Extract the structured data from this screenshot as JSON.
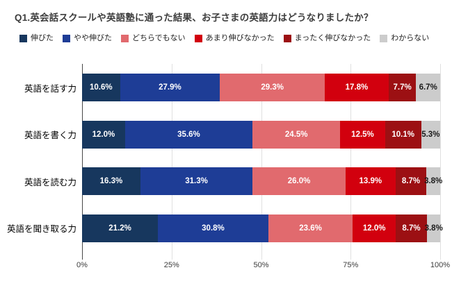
{
  "chart_data": {
    "type": "bar",
    "orientation": "horizontal",
    "stacked": true,
    "title": "Q1.英会話スクールや英語塾に通った結果、お子さまの英語力はどうなりましたか？",
    "categories": [
      "英語を話す力",
      "英語を書く力",
      "英語を読む力",
      "英語を聞き取る力"
    ],
    "series": [
      {
        "name": "伸びた",
        "color": "#17375E",
        "label_color": "#ffffff",
        "values": [
          10.6,
          12.0,
          16.3,
          21.2
        ]
      },
      {
        "name": "やや伸びた",
        "color": "#1E3D96",
        "label_color": "#ffffff",
        "values": [
          27.9,
          35.6,
          31.3,
          30.8
        ]
      },
      {
        "name": "どちらでもない",
        "color": "#E16A6E",
        "label_color": "#ffffff",
        "values": [
          29.3,
          24.5,
          26.0,
          23.6
        ]
      },
      {
        "name": "あまり伸びなかった",
        "color": "#D2000E",
        "label_color": "#ffffff",
        "values": [
          17.8,
          12.5,
          13.9,
          12.0
        ]
      },
      {
        "name": "まったく伸びなかった",
        "color": "#9C1013",
        "label_color": "#ffffff",
        "values": [
          7.7,
          10.1,
          8.7,
          8.7
        ]
      },
      {
        "name": "わからない",
        "color": "#CCCCCC",
        "label_color": "#1a1a1a",
        "values": [
          6.7,
          5.3,
          3.8,
          3.8
        ]
      }
    ],
    "x_ticks": [
      "0%",
      "25%",
      "50%",
      "75%",
      "100%"
    ],
    "xlim": [
      0,
      100
    ],
    "value_suffix": "%",
    "grid": true,
    "legend_position": "top"
  }
}
